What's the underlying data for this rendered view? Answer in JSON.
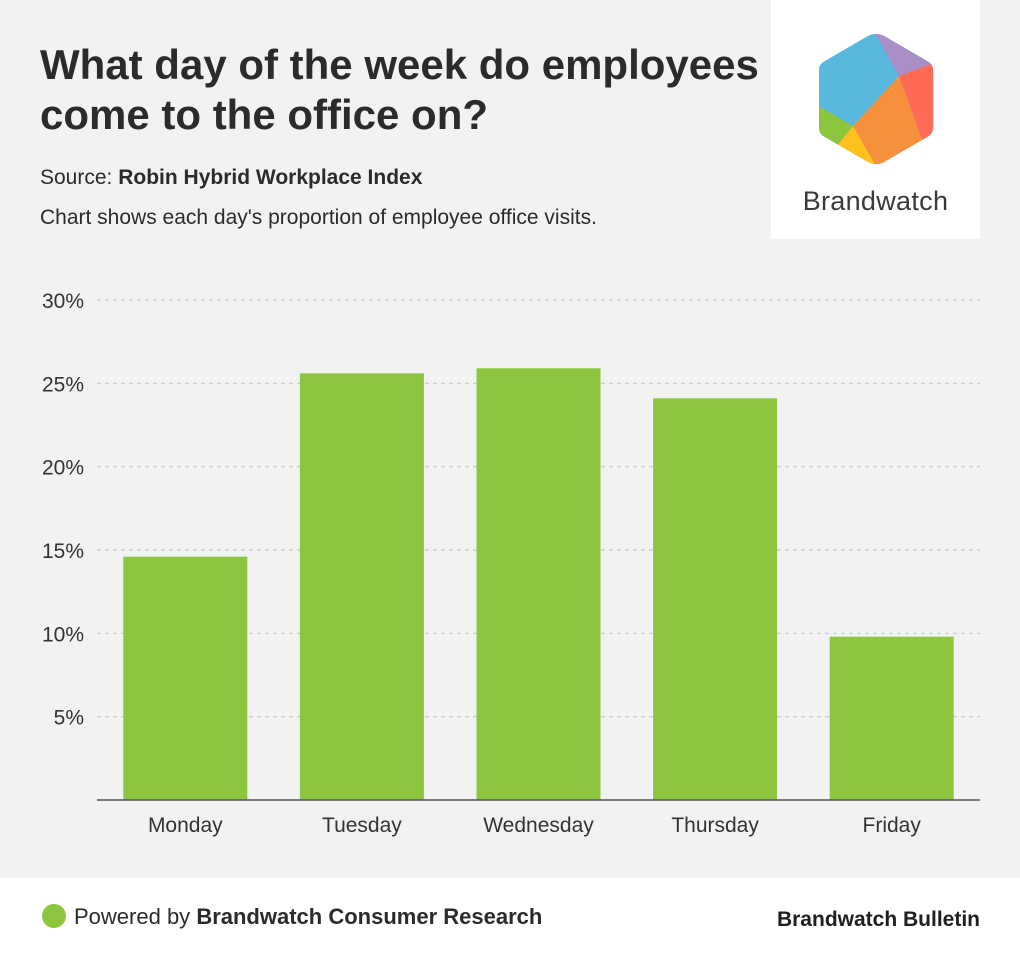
{
  "header": {
    "title": "What day of the week do employees come to the office on?",
    "source_label": "Source:",
    "source_name": "Robin Hybrid Workplace Index",
    "subtitle": "Chart shows each day's proportion of employee office visits."
  },
  "logo": {
    "name": "Brandwatch"
  },
  "colors": {
    "bar": "#8cc63f",
    "grid": "#c8c8c8",
    "axis": "#555555",
    "text": "#333333"
  },
  "chart_data": {
    "type": "bar",
    "title": "What day of the week do employees come to the office on?",
    "xlabel": "",
    "ylabel": "",
    "categories": [
      "Monday",
      "Tuesday",
      "Wednesday",
      "Thursday",
      "Friday"
    ],
    "values": [
      14.6,
      25.6,
      25.9,
      24.1,
      9.8
    ],
    "ylim": [
      0,
      30
    ],
    "yticks": [
      "5%",
      "10%",
      "15%",
      "20%",
      "25%",
      "30%"
    ],
    "ytick_values": [
      5,
      10,
      15,
      20,
      25,
      30
    ],
    "grid": true,
    "legend": "none"
  },
  "footer": {
    "powered_prefix": "Powered by",
    "powered_name": "Brandwatch Consumer Research",
    "bulletin": "Brandwatch Bulletin"
  }
}
